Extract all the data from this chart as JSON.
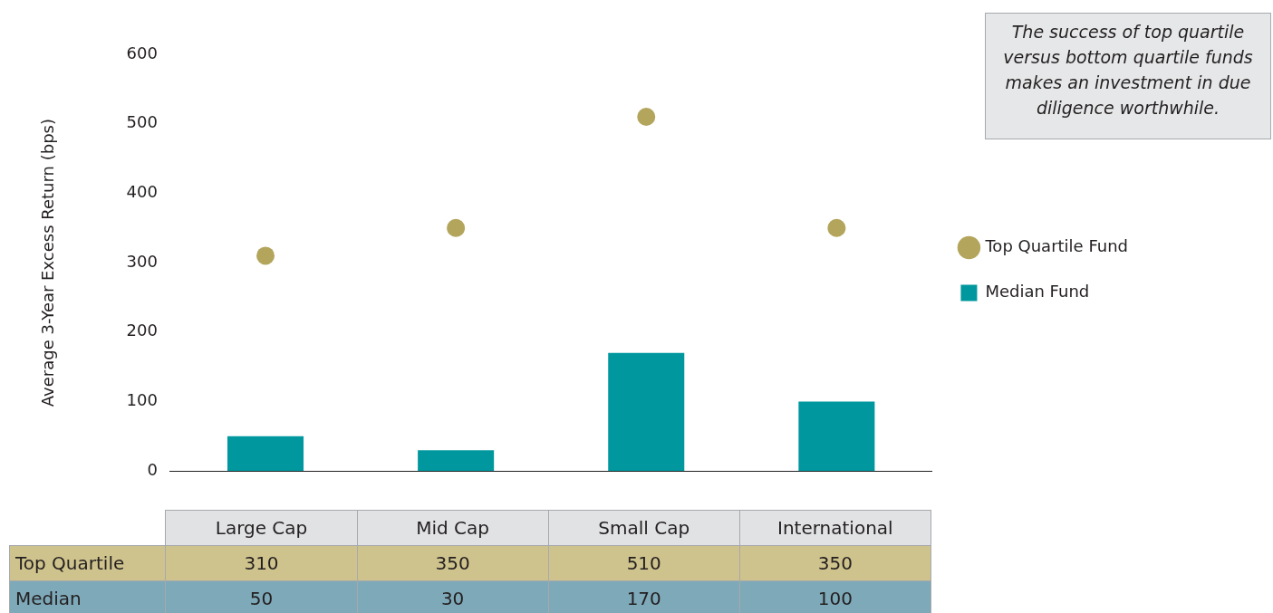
{
  "chart_data": {
    "type": "bar",
    "ylabel": "Average 3-Year Excess Return (bps)",
    "categories": [
      "Large Cap",
      "Mid Cap",
      "Small Cap",
      "International"
    ],
    "series": [
      {
        "name": "Top Quartile Fund",
        "type": "scatter",
        "color": "#b3a55c",
        "values": [
          310,
          350,
          510,
          350
        ]
      },
      {
        "name": "Median Fund",
        "color": "#00989e",
        "values": [
          50,
          30,
          170,
          100
        ]
      }
    ],
    "ylim": [
      0,
      600
    ],
    "yticks": [
      0,
      100,
      200,
      300,
      400,
      500,
      600
    ],
    "grid": false,
    "legend": "right",
    "marker": "circle",
    "data_labels": true,
    "annotations": [
      "The success of top quartile versus bottom quartile funds makes an investment in due diligence worthwhile.",
      "Top Quartile",
      "Median"
    ]
  }
}
